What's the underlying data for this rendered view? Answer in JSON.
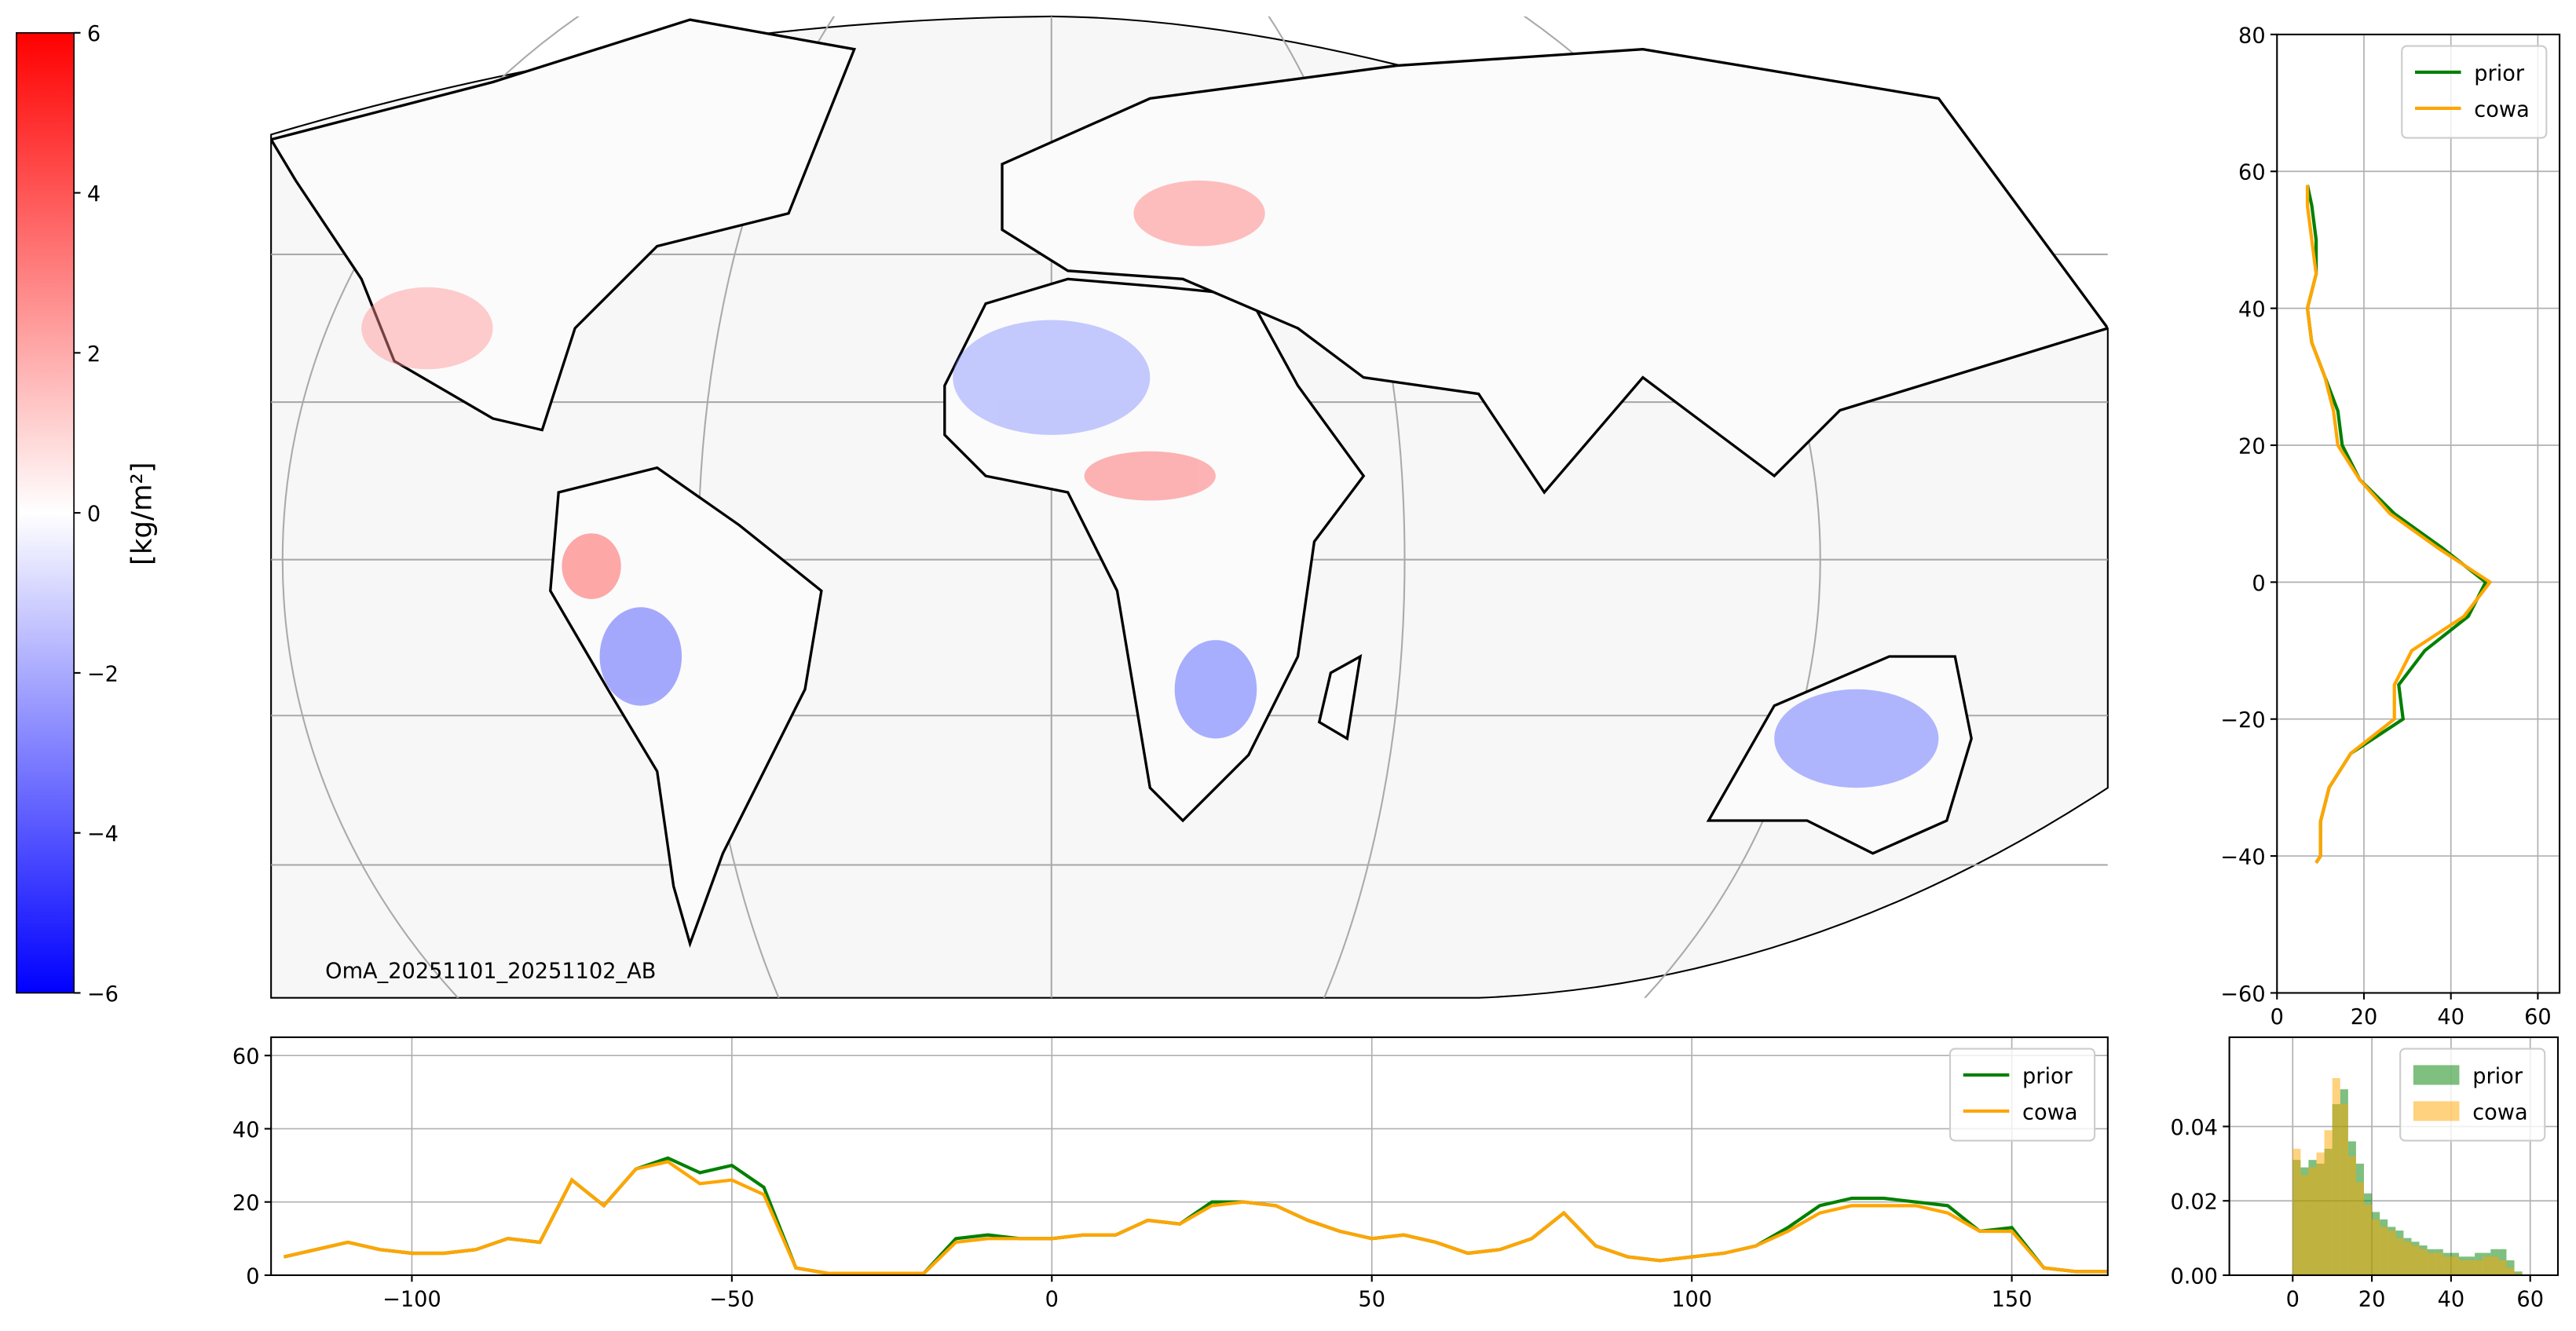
{
  "chart_data": [
    {
      "type": "map",
      "annotation": "OmA_20251101_20251102_AB",
      "colorbar": {
        "label": "[kg/m²]",
        "lim": [
          -6,
          6
        ],
        "colors": [
          "#0000ff",
          "#ffffff",
          "#ff0000"
        ],
        "ticks": [
          {
            "value": -6,
            "label": "−6"
          },
          {
            "value": -4,
            "label": "−4"
          },
          {
            "value": -2,
            "label": "−2"
          },
          0,
          2,
          4,
          6
        ]
      }
    },
    {
      "type": "line",
      "legend": "upper right",
      "grid": true,
      "x": [
        -120,
        -115,
        -110,
        -105,
        -100,
        -95,
        -90,
        -85,
        -80,
        -75,
        -70,
        -65,
        -60,
        -55,
        -50,
        -45,
        -40,
        -35,
        -30,
        -25,
        -20,
        -15,
        -10,
        -5,
        0,
        5,
        10,
        15,
        20,
        25,
        30,
        35,
        40,
        45,
        50,
        55,
        60,
        65,
        70,
        75,
        80,
        85,
        90,
        95,
        100,
        105,
        110,
        115,
        120,
        125,
        130,
        135,
        140,
        145,
        150,
        155,
        160,
        165
      ],
      "series": [
        {
          "name": "prior",
          "color": "#008000",
          "values": [
            5,
            7,
            9,
            7,
            6,
            6,
            7,
            10,
            9,
            26,
            19,
            29,
            32,
            28,
            30,
            24,
            2,
            0.5,
            0.5,
            0.5,
            0.5,
            10,
            11,
            10,
            10,
            11,
            11,
            15,
            14,
            20,
            20,
            19,
            15,
            12,
            10,
            11,
            9,
            6,
            7,
            10,
            17,
            8,
            5,
            4,
            5,
            6,
            8,
            13,
            19,
            21,
            21,
            20,
            19,
            12,
            13,
            2,
            1,
            1
          ]
        },
        {
          "name": "cowa",
          "color": "#ffa500",
          "values": [
            5,
            7,
            9,
            7,
            6,
            6,
            7,
            10,
            9,
            26,
            19,
            29,
            31,
            25,
            26,
            22,
            2,
            0.5,
            0.5,
            0.5,
            0.5,
            9,
            10,
            10,
            10,
            11,
            11,
            15,
            14,
            19,
            20,
            19,
            15,
            12,
            10,
            11,
            9,
            6,
            7,
            10,
            17,
            8,
            5,
            4,
            5,
            6,
            8,
            12,
            17,
            19,
            19,
            19,
            17,
            12,
            12,
            2,
            1,
            1
          ]
        }
      ],
      "xlim": [
        -122,
        165
      ],
      "ylim": [
        0,
        65
      ],
      "xticks": [
        {
          "value": -100,
          "label": "−100"
        },
        {
          "value": -50,
          "label": "−50"
        },
        0,
        50,
        100,
        150
      ],
      "yticks": [
        0,
        20,
        40,
        60
      ]
    },
    {
      "type": "line",
      "legend": "upper right",
      "grid": true,
      "y": [
        58,
        55,
        50,
        45,
        40,
        35,
        30,
        25,
        20,
        15,
        10,
        5,
        0,
        -5,
        -10,
        -15,
        -20,
        -25,
        -30,
        -35,
        -40,
        -41
      ],
      "series": [
        {
          "name": "prior",
          "color": "#008000",
          "values": [
            7,
            8,
            9,
            9,
            7,
            8,
            11,
            14,
            15,
            19,
            27,
            38,
            48,
            44,
            34,
            28,
            29,
            17,
            12,
            10,
            10,
            9
          ]
        },
        {
          "name": "cowa",
          "color": "#ffa500",
          "values": [
            7,
            7,
            8,
            9,
            7,
            8,
            11,
            13,
            14,
            19,
            26,
            37,
            49,
            43,
            31,
            27,
            27,
            17,
            12,
            10,
            10,
            9
          ]
        }
      ],
      "xlim": [
        0,
        65
      ],
      "ylim": [
        -60,
        80
      ],
      "xticks": [
        0,
        20,
        40,
        60
      ],
      "yticks": [
        {
          "value": -60,
          "label": "−60"
        },
        {
          "value": -40,
          "label": "−40"
        },
        {
          "value": -20,
          "label": "−20"
        },
        0,
        20,
        40,
        60,
        80
      ]
    },
    {
      "type": "histogram",
      "legend": "upper right",
      "grid": true,
      "bins": [
        0,
        2,
        4,
        6,
        8,
        10,
        12,
        14,
        16,
        18,
        20,
        22,
        24,
        26,
        28,
        30,
        32,
        34,
        36,
        38,
        40,
        42,
        44,
        46,
        48,
        50,
        52,
        54,
        56,
        58
      ],
      "series": [
        {
          "name": "prior",
          "color": "#008000",
          "values": [
            0.031,
            0.029,
            0.031,
            0.03,
            0.034,
            0.046,
            0.05,
            0.036,
            0.03,
            0.022,
            0.017,
            0.015,
            0.013,
            0.012,
            0.01,
            0.009,
            0.008,
            0.007,
            0.007,
            0.006,
            0.006,
            0.005,
            0.005,
            0.006,
            0.006,
            0.007,
            0.007,
            0.004,
            0.001
          ]
        },
        {
          "name": "cowa",
          "color": "#ffa500",
          "values": [
            0.034,
            0.027,
            0.029,
            0.033,
            0.039,
            0.053,
            0.046,
            0.032,
            0.025,
            0.019,
            0.015,
            0.013,
            0.012,
            0.01,
            0.009,
            0.008,
            0.007,
            0.006,
            0.006,
            0.005,
            0.005,
            0.004,
            0.004,
            0.004,
            0.005,
            0.005,
            0.004,
            0.002,
            0.0005
          ]
        }
      ],
      "xlim": [
        -16,
        67
      ],
      "ylim": [
        0,
        0.064
      ],
      "xticks": [
        0,
        20,
        40,
        60
      ],
      "yticks": [
        {
          "value": 0,
          "label": "0.00"
        },
        {
          "value": 0.02,
          "label": "0.02"
        },
        {
          "value": 0.04,
          "label": "0.04"
        }
      ]
    }
  ]
}
